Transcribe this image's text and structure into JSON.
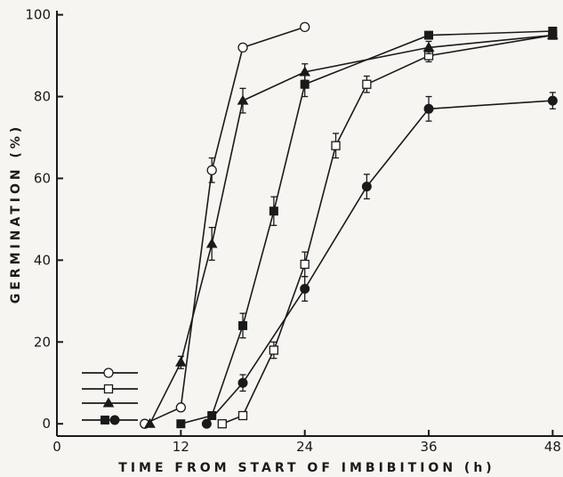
{
  "chart_data": {
    "type": "line",
    "title": "",
    "xlabel": "TIME FROM START OF IMBIBITION (h)",
    "ylabel": "GERMINATION (%)",
    "xlim": [
      0,
      49
    ],
    "ylim": [
      -3,
      101
    ],
    "x_ticks": [
      0,
      12,
      24,
      36,
      48
    ],
    "y_ticks": [
      0,
      20,
      40,
      60,
      80,
      100
    ],
    "x_tick_labels": [
      "0",
      "12",
      "24",
      "36",
      "48"
    ],
    "y_tick_labels": [
      "0",
      "20",
      "40",
      "60",
      "80",
      "100"
    ],
    "legend_placement": "lower-left",
    "series": [
      {
        "marker": "open-circle",
        "points": [
          {
            "x": 8.5,
            "y": 0,
            "err": 0
          },
          {
            "x": 12,
            "y": 4,
            "err": 0
          },
          {
            "x": 15,
            "y": 62,
            "err": 3
          },
          {
            "x": 18,
            "y": 92,
            "err": 0
          },
          {
            "x": 24,
            "y": 97,
            "err": 0
          }
        ]
      },
      {
        "marker": "open-square",
        "points": [
          {
            "x": 16,
            "y": 0,
            "err": 0
          },
          {
            "x": 18,
            "y": 2,
            "err": 0
          },
          {
            "x": 21,
            "y": 18,
            "err": 2
          },
          {
            "x": 24,
            "y": 39,
            "err": 3
          },
          {
            "x": 27,
            "y": 68,
            "err": 3
          },
          {
            "x": 30,
            "y": 83,
            "err": 2
          },
          {
            "x": 36,
            "y": 90,
            "err": 1.5
          },
          {
            "x": 48,
            "y": 95,
            "err": 0
          }
        ]
      },
      {
        "marker": "filled-triangle",
        "points": [
          {
            "x": 9,
            "y": 0,
            "err": 0
          },
          {
            "x": 12,
            "y": 15,
            "err": 1.5
          },
          {
            "x": 15,
            "y": 44,
            "err": 4
          },
          {
            "x": 18,
            "y": 79,
            "err": 3
          },
          {
            "x": 24,
            "y": 86,
            "err": 2
          },
          {
            "x": 36,
            "y": 92,
            "err": 1.5
          },
          {
            "x": 48,
            "y": 95,
            "err": 0
          }
        ]
      },
      {
        "marker": "filled-square",
        "points": [
          {
            "x": 12,
            "y": 0,
            "err": 0
          },
          {
            "x": 15,
            "y": 2,
            "err": 0
          },
          {
            "x": 18,
            "y": 24,
            "err": 3
          },
          {
            "x": 21,
            "y": 52,
            "err": 3.5
          },
          {
            "x": 24,
            "y": 83,
            "err": 3
          },
          {
            "x": 36,
            "y": 95,
            "err": 0
          },
          {
            "x": 48,
            "y": 96,
            "err": 0
          }
        ]
      },
      {
        "marker": "filled-circle",
        "points": [
          {
            "x": 14.5,
            "y": 0,
            "err": 0
          },
          {
            "x": 18,
            "y": 10,
            "err": 2
          },
          {
            "x": 24,
            "y": 33,
            "err": 3
          },
          {
            "x": 30,
            "y": 58,
            "err": 3
          },
          {
            "x": 36,
            "y": 77,
            "err": 3
          },
          {
            "x": 48,
            "y": 79,
            "err": 2
          }
        ]
      }
    ],
    "legend": [
      {
        "markers": [
          "open-circle"
        ]
      },
      {
        "markers": [
          "open-square"
        ]
      },
      {
        "markers": [
          "filled-triangle"
        ]
      },
      {
        "markers": [
          "filled-square",
          "filled-circle"
        ]
      }
    ]
  }
}
